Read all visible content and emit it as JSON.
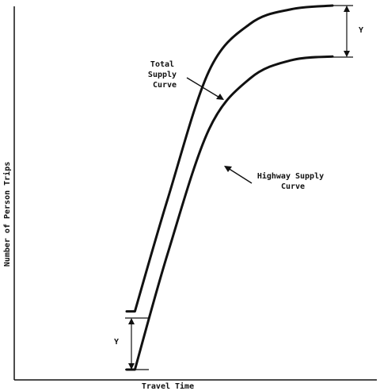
{
  "chart_data": {
    "type": "line",
    "title": "",
    "xlabel": "Travel Time",
    "ylabel": "Number of Person Trips",
    "grid": false,
    "series": [
      {
        "name": "Total Supply Curve",
        "label_lines": [
          "Total",
          "Supply",
          "Curve"
        ],
        "points": [
          [
            0.0,
            0.16
          ],
          [
            0.02,
            0.16
          ],
          [
            0.1,
            0.47
          ],
          [
            0.2,
            0.82
          ],
          [
            0.3,
            0.95
          ],
          [
            0.4,
            0.99
          ],
          [
            0.5,
            1.0
          ]
        ]
      },
      {
        "name": "Highway Supply Curve",
        "label_lines": [
          "Highway Supply",
          "Curve"
        ],
        "points": [
          [
            0.0,
            0.0
          ],
          [
            0.02,
            0.0
          ],
          [
            0.1,
            0.32
          ],
          [
            0.2,
            0.66
          ],
          [
            0.3,
            0.8
          ],
          [
            0.4,
            0.85
          ],
          [
            0.5,
            0.86
          ]
        ]
      }
    ],
    "annotations": [
      {
        "text": "Y",
        "meaning": "vertical gap between the curves at the start"
      },
      {
        "text": "Y",
        "meaning": "vertical gap between the curves at the end"
      }
    ]
  }
}
